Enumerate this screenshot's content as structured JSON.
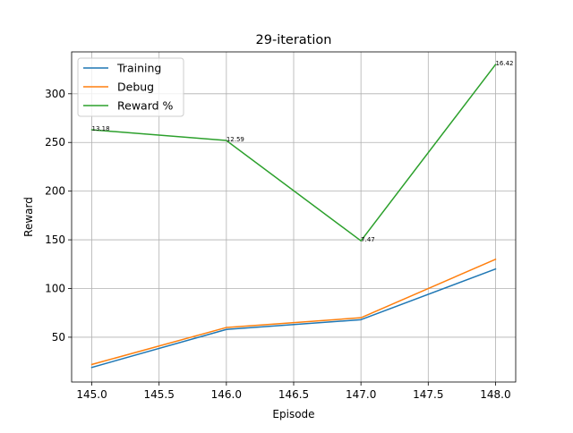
{
  "chart_data": {
    "type": "line",
    "title": "29-iteration",
    "xlabel": "Episode",
    "ylabel": "Reward",
    "x": [
      145.0,
      146.0,
      147.0,
      148.0
    ],
    "xlim": [
      144.85,
      148.15
    ],
    "ylim": [
      4,
      343
    ],
    "xticks": [
      145.0,
      145.5,
      146.0,
      146.5,
      147.0,
      147.5,
      148.0
    ],
    "xtick_labels": [
      "145.0",
      "145.5",
      "146.0",
      "146.5",
      "147.0",
      "147.5",
      "148.0"
    ],
    "yticks": [
      50,
      100,
      150,
      200,
      250,
      300
    ],
    "ytick_labels": [
      "50",
      "100",
      "150",
      "200",
      "250",
      "300"
    ],
    "grid": true,
    "legend_position": "upper-left",
    "series": [
      {
        "name": "Training",
        "color": "#1f77b4",
        "values": [
          19,
          58,
          68,
          120
        ]
      },
      {
        "name": "Debug",
        "color": "#ff7f0e",
        "values": [
          22,
          60,
          70,
          130
        ]
      },
      {
        "name": "Reward %",
        "color": "#2ca02c",
        "values": [
          263,
          252,
          149,
          330
        ],
        "labels": [
          "13.18",
          "12.59",
          "7.47",
          "16.42"
        ]
      }
    ]
  }
}
